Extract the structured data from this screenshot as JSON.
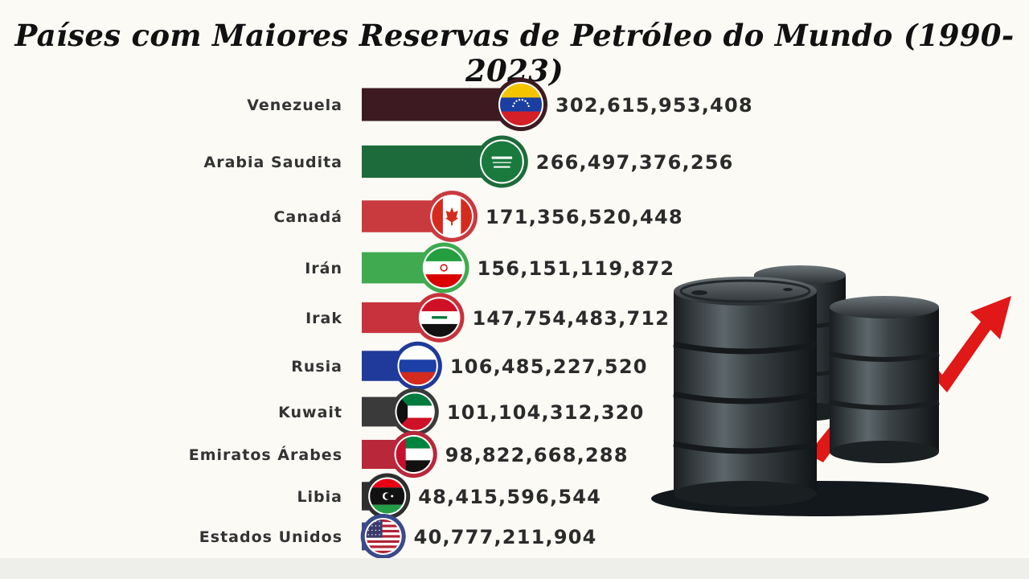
{
  "chart_data": {
    "type": "bar",
    "title": "Países com Maiores Reservas de Petróleo do Mundo (1990-2023)",
    "categories": [
      "Venezuela",
      "Arabia Saudita",
      "Canadá",
      "Irán",
      "Irak",
      "Rusia",
      "Kuwait",
      "Emiratos Árabes",
      "Libia",
      "Estados Unidos"
    ],
    "values": [
      302615953408,
      266497376256,
      171356520448,
      156151119872,
      147754483712,
      106485227520,
      101104312320,
      98822668288,
      48415596544,
      40777211904
    ],
    "value_labels": [
      "302,615,953,408",
      "266,497,376,256",
      "171,356,520,448",
      "156,151,119,872",
      "147,754,483,712",
      "106,485,227,520",
      "101,104,312,320",
      "98,822,668,288",
      "48,415,596,544",
      "40,777,211,904"
    ],
    "bar_colors": [
      "#3d1a22",
      "#1d6b3b",
      "#c93a3f",
      "#3faa4f",
      "#c8323c",
      "#1f3a9a",
      "#3a3a3a",
      "#b8283a",
      "#2e2e2e",
      "#3a4a8a"
    ],
    "orientation": "horizontal",
    "grid": false,
    "legend": false,
    "flags": [
      "venezuela-flag",
      "saudi-arabia-flag",
      "canada-flag",
      "iran-flag",
      "iraq-flag",
      "russia-flag",
      "kuwait-flag",
      "uae-flag",
      "libya-flag",
      "usa-flag"
    ]
  },
  "illustration": {
    "icon": "oil-barrels-rising-arrow-icon",
    "arrow_color": "#e01818",
    "barrel_color": "#2f3538"
  }
}
